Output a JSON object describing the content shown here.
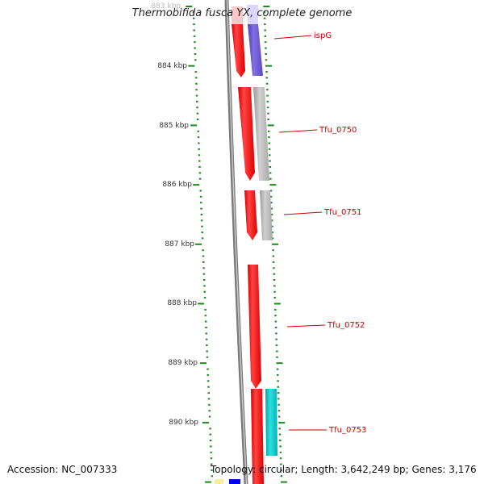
{
  "title": "Thermobifida fusca YX, complete genome",
  "accession": "Accession: NC_007333",
  "topology": "Topology: circular; Length: 3,642,249 bp; Genes: 3,176",
  "ticks": [
    {
      "label": "883 kbp"
    },
    {
      "label": "884 kbp"
    },
    {
      "label": "885 kbp"
    },
    {
      "label": "886 kbp"
    },
    {
      "label": "887 kbp"
    },
    {
      "label": "888 kbp"
    },
    {
      "label": "889 kbp"
    },
    {
      "label": "890 kbp"
    }
  ],
  "genes": [
    {
      "name": "ispG",
      "color": "#ff0000"
    },
    {
      "name": "Tfu_0750",
      "color": "#ff0000"
    },
    {
      "name": "Tfu_0751",
      "color": "#ff0000"
    },
    {
      "name": "Tfu_0752",
      "color": "#ff0000"
    },
    {
      "name": "Tfu_0753",
      "color": "#ff0000"
    }
  ],
  "colors": {
    "backbone": "#7a7a7a",
    "cds": "#ff0000",
    "cds_faded": "#ffc8c8",
    "feature_purple": "#6a55cc",
    "feature_purple_faded": "#dcd6ff",
    "feature_gray": "#b8b8b8",
    "feature_teal": "#00c2c2",
    "feature_blue": "#0000ee",
    "feature_yellow": "#f5eda0",
    "tick_green": "#1e8a1e"
  }
}
